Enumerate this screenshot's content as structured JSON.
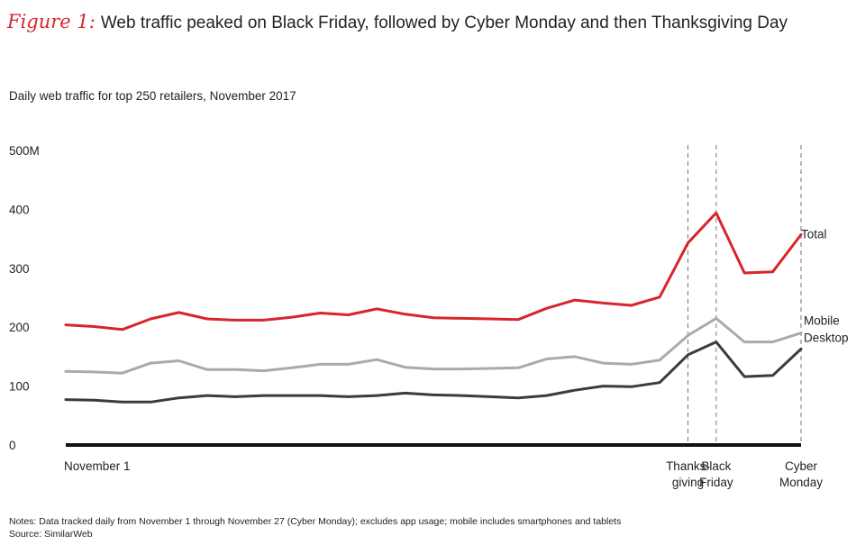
{
  "figure": {
    "label": "Figure 1:",
    "title": "Web traffic peaked on Black Friday, followed by Cyber Monday and then Thanksgiving Day"
  },
  "subtitle": "Daily web traffic for top 250 retailers, November 2017",
  "notes": {
    "note": "Notes: Data tracked daily from November 1 through November 27 (Cyber Monday); excludes app usage; mobile includes smartphones and tablets",
    "source": "Source: SimilarWeb"
  },
  "colors": {
    "total": "#d7262b",
    "mobile": "#aaaaaa",
    "desktop": "#3b3b3b",
    "axis": "#111111",
    "event_line": "#777777"
  },
  "chart_data": {
    "type": "line",
    "title": "Web traffic peaked on Black Friday, followed by Cyber Monday and then Thanksgiving Day",
    "subtitle": "Daily web traffic for top 250 retailers, November 2017",
    "xlabel": "",
    "ylabel": "",
    "x": [
      1,
      2,
      3,
      4,
      5,
      6,
      7,
      8,
      9,
      10,
      11,
      12,
      13,
      14,
      15,
      16,
      17,
      18,
      19,
      20,
      21,
      22,
      23,
      24,
      25,
      26,
      27
    ],
    "ylim": [
      0,
      500
    ],
    "yticks": [
      0,
      100,
      200,
      300,
      400,
      500
    ],
    "ytick_labels": [
      "0",
      "100",
      "200",
      "300",
      "400",
      "500M"
    ],
    "grid": false,
    "series": [
      {
        "name": "Total",
        "color_key": "total",
        "values": [
          204,
          201,
          196,
          214,
          225,
          214,
          212,
          212,
          217,
          224,
          221,
          231,
          222,
          216,
          215,
          214,
          213,
          232,
          246,
          241,
          237,
          251,
          343,
          394,
          292,
          294,
          357
        ]
      },
      {
        "name": "Mobile",
        "color_key": "mobile",
        "values": [
          125,
          124,
          122,
          139,
          143,
          128,
          128,
          126,
          131,
          137,
          137,
          145,
          132,
          129,
          129,
          130,
          131,
          146,
          150,
          139,
          137,
          144,
          186,
          215,
          175,
          175,
          190
        ]
      },
      {
        "name": "Desktop",
        "color_key": "desktop",
        "values": [
          77,
          76,
          73,
          73,
          80,
          84,
          82,
          84,
          84,
          84,
          82,
          84,
          88,
          85,
          84,
          82,
          80,
          84,
          93,
          100,
          99,
          106,
          153,
          175,
          116,
          118,
          163
        ]
      }
    ],
    "x_annotations": [
      {
        "x": 1,
        "label": [
          "November 1"
        ],
        "line": false
      },
      {
        "x": 23,
        "label": [
          "Thanks-",
          "giving"
        ],
        "line": true
      },
      {
        "x": 24,
        "label": [
          "Black",
          "Friday"
        ],
        "line": true
      },
      {
        "x": 27,
        "label": [
          "Cyber",
          "Monday"
        ],
        "line": true
      }
    ]
  }
}
